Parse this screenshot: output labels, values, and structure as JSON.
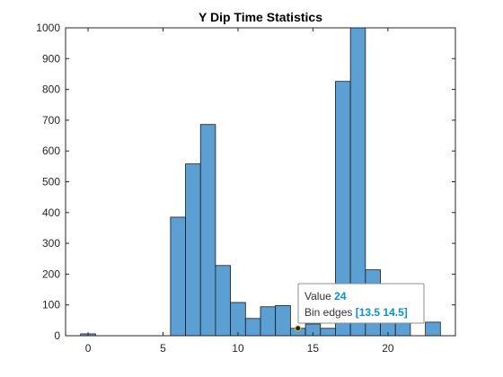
{
  "chart_data": {
    "type": "bar",
    "title": "Y Dip Time Statistics",
    "xlabel": "",
    "ylabel": "",
    "xlim": [
      -1.5,
      24.5
    ],
    "ylim": [
      0,
      1000
    ],
    "xticks": [
      0,
      5,
      10,
      15,
      20
    ],
    "yticks": [
      0,
      100,
      200,
      300,
      400,
      500,
      600,
      700,
      800,
      900,
      1000
    ],
    "grid": false,
    "legend": "none",
    "bin_width": 1,
    "bins": [
      {
        "left": -0.5,
        "right": 0.5,
        "value": 6
      },
      {
        "left": 5.5,
        "right": 6.5,
        "value": 385
      },
      {
        "left": 6.5,
        "right": 7.5,
        "value": 558
      },
      {
        "left": 7.5,
        "right": 8.5,
        "value": 686
      },
      {
        "left": 8.5,
        "right": 9.5,
        "value": 228
      },
      {
        "left": 9.5,
        "right": 10.5,
        "value": 108
      },
      {
        "left": 10.5,
        "right": 11.5,
        "value": 56
      },
      {
        "left": 11.5,
        "right": 12.5,
        "value": 94
      },
      {
        "left": 12.5,
        "right": 13.5,
        "value": 98
      },
      {
        "left": 13.5,
        "right": 14.5,
        "value": 24
      },
      {
        "left": 14.5,
        "right": 15.5,
        "value": 38
      },
      {
        "left": 15.5,
        "right": 16.5,
        "value": 24
      },
      {
        "left": 16.5,
        "right": 17.5,
        "value": 826
      },
      {
        "left": 17.5,
        "right": 18.5,
        "value": 1000
      },
      {
        "left": 18.5,
        "right": 19.5,
        "value": 214
      },
      {
        "left": 19.5,
        "right": 20.5,
        "value": 70
      },
      {
        "left": 20.5,
        "right": 21.5,
        "value": 56
      },
      {
        "left": 22.5,
        "right": 23.5,
        "value": 44
      }
    ],
    "bar_color": "#5b9fd3",
    "edge_color": "#1a1a1a",
    "datatip": {
      "value_label": "Value",
      "value": "24",
      "edges_label": "Bin edges",
      "edges": "[13.5 14.5]",
      "anchor_x": 14,
      "anchor_y": 24
    }
  }
}
